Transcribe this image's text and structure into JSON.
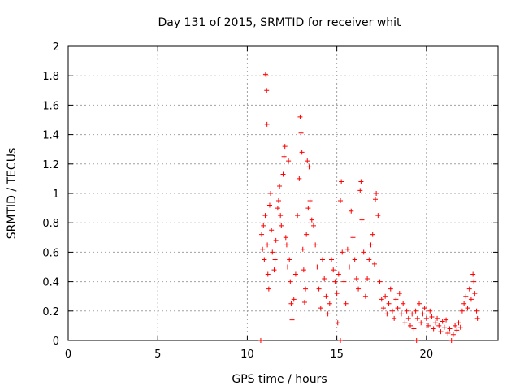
{
  "chart_data": {
    "type": "scatter",
    "title": "Day 131 of 2015, SRMTID for receiver whit",
    "xlabel": "GPS time / hours",
    "ylabel": "SRMTID / TECUs",
    "xlim": [
      0,
      24
    ],
    "ylim": [
      0,
      2
    ],
    "xticks": [
      "0",
      "5",
      "10",
      "15",
      "20"
    ],
    "yticks": [
      "0",
      "0.2",
      "0.4",
      "0.6",
      "0.8",
      "1",
      "1.2",
      "1.4",
      "1.6",
      "1.8",
      "2"
    ],
    "grid": true,
    "marker": "+",
    "series_color": "#ff0000",
    "series": [
      {
        "name": "SRMTID",
        "points": [
          [
            10.75,
            0.0
          ],
          [
            15.2,
            0.0
          ],
          [
            19.45,
            0.0
          ],
          [
            21.4,
            0.0
          ],
          [
            10.8,
            0.72
          ],
          [
            10.85,
            0.62
          ],
          [
            10.9,
            0.78
          ],
          [
            10.95,
            0.55
          ],
          [
            11.0,
            0.85
          ],
          [
            11.02,
            1.81
          ],
          [
            11.05,
            1.8
          ],
          [
            11.08,
            1.7
          ],
          [
            11.1,
            1.47
          ],
          [
            11.12,
            0.65
          ],
          [
            11.15,
            0.45
          ],
          [
            11.2,
            0.35
          ],
          [
            11.25,
            0.92
          ],
          [
            11.3,
            1.0
          ],
          [
            11.35,
            0.75
          ],
          [
            11.4,
            0.6
          ],
          [
            11.5,
            0.48
          ],
          [
            11.55,
            0.55
          ],
          [
            11.6,
            0.68
          ],
          [
            11.7,
            0.9
          ],
          [
            11.75,
            0.95
          ],
          [
            11.8,
            1.05
          ],
          [
            11.85,
            0.85
          ],
          [
            11.9,
            0.78
          ],
          [
            12.0,
            1.13
          ],
          [
            12.05,
            1.25
          ],
          [
            12.1,
            1.32
          ],
          [
            12.15,
            0.7
          ],
          [
            12.2,
            0.65
          ],
          [
            12.25,
            0.5
          ],
          [
            12.3,
            1.22
          ],
          [
            12.35,
            0.55
          ],
          [
            12.4,
            0.4
          ],
          [
            12.45,
            0.25
          ],
          [
            12.5,
            0.14
          ],
          [
            12.6,
            0.28
          ],
          [
            12.7,
            0.45
          ],
          [
            12.8,
            0.85
          ],
          [
            12.9,
            1.1
          ],
          [
            12.95,
            1.52
          ],
          [
            13.0,
            1.41
          ],
          [
            13.05,
            1.28
          ],
          [
            13.1,
            0.62
          ],
          [
            13.15,
            0.48
          ],
          [
            13.2,
            0.26
          ],
          [
            13.25,
            0.35
          ],
          [
            13.3,
            0.72
          ],
          [
            13.35,
            1.22
          ],
          [
            13.4,
            0.9
          ],
          [
            13.45,
            1.18
          ],
          [
            13.5,
            0.95
          ],
          [
            13.6,
            0.82
          ],
          [
            13.7,
            0.78
          ],
          [
            13.8,
            0.65
          ],
          [
            13.9,
            0.5
          ],
          [
            14.0,
            0.35
          ],
          [
            14.1,
            0.22
          ],
          [
            14.2,
            0.55
          ],
          [
            14.3,
            0.42
          ],
          [
            14.4,
            0.3
          ],
          [
            14.5,
            0.18
          ],
          [
            14.6,
            0.25
          ],
          [
            14.7,
            0.55
          ],
          [
            14.8,
            0.48
          ],
          [
            14.9,
            0.4
          ],
          [
            15.0,
            0.32
          ],
          [
            15.05,
            0.12
          ],
          [
            15.1,
            0.45
          ],
          [
            15.2,
            0.95
          ],
          [
            15.25,
            1.08
          ],
          [
            15.3,
            0.6
          ],
          [
            15.4,
            0.4
          ],
          [
            15.5,
            0.25
          ],
          [
            15.6,
            0.62
          ],
          [
            15.7,
            0.5
          ],
          [
            15.8,
            0.88
          ],
          [
            15.9,
            0.7
          ],
          [
            16.0,
            0.55
          ],
          [
            16.1,
            0.42
          ],
          [
            16.2,
            0.35
          ],
          [
            16.3,
            1.02
          ],
          [
            16.35,
            1.08
          ],
          [
            16.4,
            0.82
          ],
          [
            16.5,
            0.6
          ],
          [
            16.6,
            0.3
          ],
          [
            16.7,
            0.42
          ],
          [
            16.8,
            0.55
          ],
          [
            16.9,
            0.65
          ],
          [
            17.0,
            0.72
          ],
          [
            17.1,
            0.52
          ],
          [
            17.15,
            0.96
          ],
          [
            17.2,
            1.0
          ],
          [
            17.3,
            0.85
          ],
          [
            17.4,
            0.4
          ],
          [
            17.5,
            0.28
          ],
          [
            17.6,
            0.22
          ],
          [
            17.7,
            0.3
          ],
          [
            17.8,
            0.18
          ],
          [
            17.9,
            0.25
          ],
          [
            18.0,
            0.35
          ],
          [
            18.1,
            0.2
          ],
          [
            18.2,
            0.15
          ],
          [
            18.3,
            0.28
          ],
          [
            18.4,
            0.22
          ],
          [
            18.5,
            0.32
          ],
          [
            18.6,
            0.18
          ],
          [
            18.7,
            0.25
          ],
          [
            18.8,
            0.12
          ],
          [
            18.9,
            0.2
          ],
          [
            19.0,
            0.15
          ],
          [
            19.1,
            0.1
          ],
          [
            19.2,
            0.18
          ],
          [
            19.3,
            0.08
          ],
          [
            19.4,
            0.2
          ],
          [
            19.5,
            0.15
          ],
          [
            19.6,
            0.25
          ],
          [
            19.7,
            0.12
          ],
          [
            19.8,
            0.18
          ],
          [
            19.9,
            0.22
          ],
          [
            20.0,
            0.15
          ],
          [
            20.1,
            0.1
          ],
          [
            20.2,
            0.2
          ],
          [
            20.3,
            0.16
          ],
          [
            20.4,
            0.08
          ],
          [
            20.5,
            0.12
          ],
          [
            20.6,
            0.15
          ],
          [
            20.7,
            0.1
          ],
          [
            20.8,
            0.06
          ],
          [
            20.9,
            0.13
          ],
          [
            21.0,
            0.09
          ],
          [
            21.1,
            0.14
          ],
          [
            21.2,
            0.05
          ],
          [
            21.3,
            0.08
          ],
          [
            21.5,
            0.04
          ],
          [
            21.6,
            0.1
          ],
          [
            21.7,
            0.07
          ],
          [
            21.8,
            0.12
          ],
          [
            21.9,
            0.09
          ],
          [
            22.0,
            0.2
          ],
          [
            22.1,
            0.25
          ],
          [
            22.2,
            0.3
          ],
          [
            22.3,
            0.22
          ],
          [
            22.4,
            0.35
          ],
          [
            22.5,
            0.28
          ],
          [
            22.6,
            0.45
          ],
          [
            22.65,
            0.4
          ],
          [
            22.7,
            0.32
          ],
          [
            22.8,
            0.2
          ],
          [
            22.85,
            0.15
          ]
        ]
      }
    ]
  }
}
